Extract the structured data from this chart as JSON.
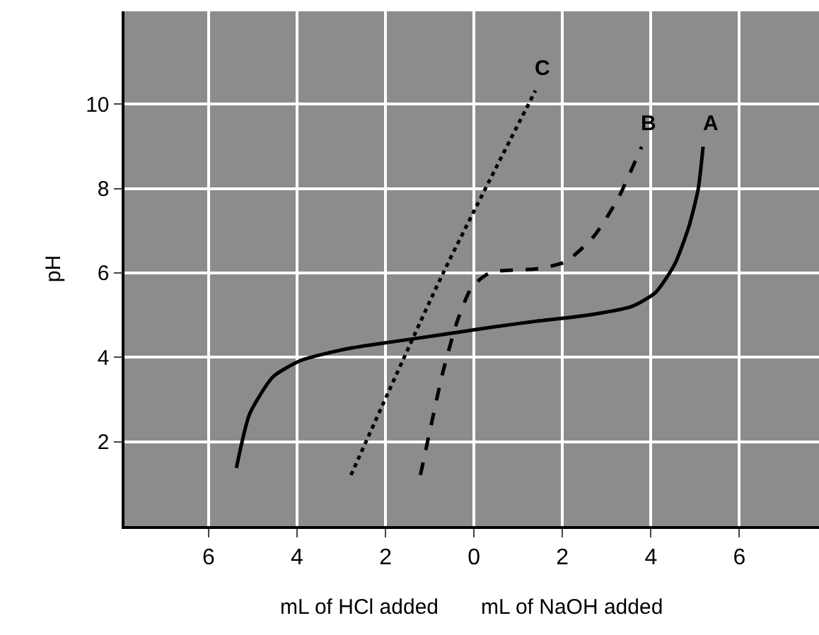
{
  "chart_data": {
    "type": "line",
    "ylabel": "pH",
    "annotations": [
      "mL of HCl added",
      "mL of NaOH added"
    ],
    "series": [
      {
        "name": "A",
        "color": "#000000",
        "line_style": "solid",
        "x": [
          -5.37,
          -5.07,
          -4.54,
          -3.9,
          -2.83,
          -1.76,
          -0.7,
          0.37,
          1.44,
          2.51,
          3.58,
          4.11,
          4.54,
          4.86,
          5.07,
          5.18
        ],
        "values": [
          1.38,
          2.66,
          3.54,
          3.93,
          4.21,
          4.38,
          4.54,
          4.71,
          4.86,
          4.99,
          5.21,
          5.54,
          6.21,
          7.1,
          7.99,
          8.99
        ]
      },
      {
        "name": "B",
        "color": "#000000",
        "line_style": "dashed",
        "x": [
          -1.21,
          -0.96,
          -0.7,
          -0.37,
          -0.05,
          0.37,
          1.44,
          2.08,
          2.72,
          3.26,
          3.79
        ],
        "values": [
          1.21,
          2.43,
          3.66,
          4.88,
          5.66,
          6.01,
          6.1,
          6.27,
          6.88,
          7.77,
          8.99
        ]
      },
      {
        "name": "C",
        "color": "#000000",
        "line_style": "dotted",
        "x": [
          -2.78,
          -0.7,
          1.39
        ],
        "values": [
          1.21,
          5.99,
          10.32
        ]
      }
    ],
    "xlim": [
      -7.9,
      7.8
    ],
    "xticks": [
      {
        "value": -6,
        "label": "6"
      },
      {
        "value": -4,
        "label": "4"
      },
      {
        "value": -2,
        "label": "2"
      },
      0,
      2,
      4,
      6
    ],
    "ylim": [
      0,
      12.2
    ],
    "yticks": [
      2,
      4,
      6,
      8,
      10
    ],
    "grid": true,
    "legend": false,
    "marker": "none"
  }
}
